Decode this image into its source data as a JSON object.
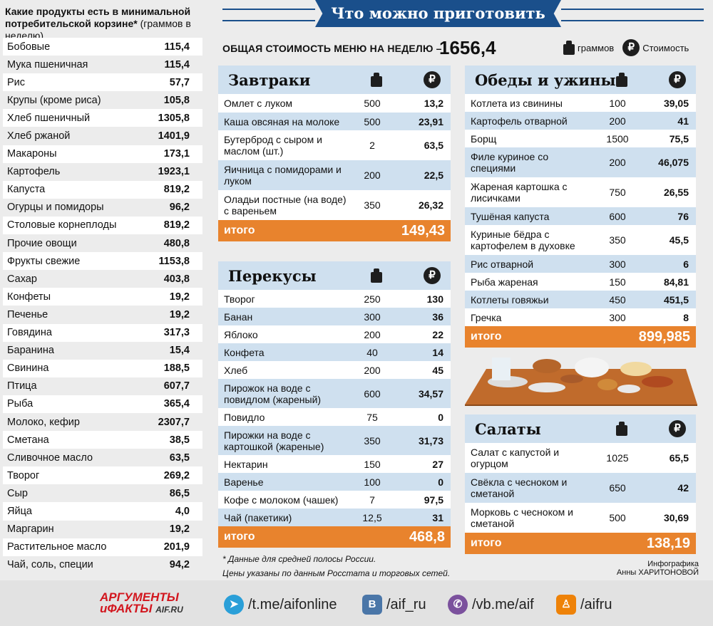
{
  "basket": {
    "title_bold": "Какие продукты есть в минимальной потребительской корзине*",
    "title_rest": " (граммов в неделю)",
    "items": [
      {
        "name": "Бобовые",
        "value": "115,4"
      },
      {
        "name": "Мука пшеничная",
        "value": "115,4"
      },
      {
        "name": "Рис",
        "value": "57,7"
      },
      {
        "name": "Крупы (кроме риса)",
        "value": "105,8"
      },
      {
        "name": "Хлеб пшеничный",
        "value": "1305,8"
      },
      {
        "name": "Хлеб ржаной",
        "value": "1401,9"
      },
      {
        "name": "Макароны",
        "value": "173,1"
      },
      {
        "name": "Картофель",
        "value": "1923,1"
      },
      {
        "name": "Капуста",
        "value": "819,2"
      },
      {
        "name": "Огурцы и помидоры",
        "value": "96,2"
      },
      {
        "name": "Столовые корнеплоды",
        "value": "819,2"
      },
      {
        "name": "Прочие овощи",
        "value": "480,8"
      },
      {
        "name": "Фрукты свежие",
        "value": "1153,8"
      },
      {
        "name": "Сахар",
        "value": "403,8"
      },
      {
        "name": "Конфеты",
        "value": "19,2"
      },
      {
        "name": "Печенье",
        "value": "19,2"
      },
      {
        "name": "Говядина",
        "value": "317,3"
      },
      {
        "name": "Баранина",
        "value": "15,4"
      },
      {
        "name": "Свинина",
        "value": "188,5"
      },
      {
        "name": "Птица",
        "value": "607,7"
      },
      {
        "name": "Рыба",
        "value": "365,4"
      },
      {
        "name": "Молоко, кефир",
        "value": "2307,7"
      },
      {
        "name": "Сметана",
        "value": "38,5"
      },
      {
        "name": "Сливочное масло",
        "value": "63,5"
      },
      {
        "name": "Творог",
        "value": "269,2"
      },
      {
        "name": "Сыр",
        "value": "86,5"
      },
      {
        "name": "Яйца",
        "value": "4,0"
      },
      {
        "name": "Маргарин",
        "value": "19,2"
      },
      {
        "name": "Растительное масло",
        "value": "201,9"
      },
      {
        "name": "Чай, соль, специи",
        "value": "94,2"
      }
    ]
  },
  "banner": "Что можно приготовить",
  "total": {
    "label": "ОБЩАЯ СТОИМОСТЬ МЕНЮ НА НЕДЕЛЮ –",
    "value": "1656,4"
  },
  "legend": {
    "grams": "граммов",
    "cost": "Стоимость",
    "rub": "₽"
  },
  "total_label": "итого",
  "breakfast": {
    "title": "Завтраки",
    "rows": [
      {
        "name": "Омлет с луком",
        "g": "500",
        "c": "13,2"
      },
      {
        "name": "Каша овсяная на молоке",
        "g": "500",
        "c": "23,91"
      },
      {
        "name": "Бутерброд с сыром и маслом (шт.)",
        "g": "2",
        "c": "63,5"
      },
      {
        "name": "Яичница с помидорами и луком",
        "g": "200",
        "c": "22,5"
      },
      {
        "name": "Оладьи постные (на воде) с вареньем",
        "g": "350",
        "c": "26,32"
      }
    ],
    "total": "149,43"
  },
  "snacks": {
    "title": "Перекусы",
    "rows": [
      {
        "name": "Творог",
        "g": "250",
        "c": "130"
      },
      {
        "name": "Банан",
        "g": "300",
        "c": "36"
      },
      {
        "name": "Яблоко",
        "g": "200",
        "c": "22"
      },
      {
        "name": "Конфета",
        "g": "40",
        "c": "14"
      },
      {
        "name": "Хлеб",
        "g": "200",
        "c": "45"
      },
      {
        "name": "Пирожок на воде с повидлом (жареный)",
        "g": "600",
        "c": "34,57"
      },
      {
        "name": "Повидло",
        "g": "75",
        "c": "0"
      },
      {
        "name": "Пирожки на воде с картошкой (жареные)",
        "g": "350",
        "c": "31,73"
      },
      {
        "name": "Нектарин",
        "g": "150",
        "c": "27"
      },
      {
        "name": "Варенье",
        "g": "100",
        "c": "0"
      },
      {
        "name": "Кофе с молоком (чашек)",
        "g": "7",
        "c": "97,5"
      },
      {
        "name": "Чай (пакетики)",
        "g": "12,5",
        "c": "31"
      }
    ],
    "total": "468,8"
  },
  "dinners": {
    "title": "Обеды и ужины",
    "rows": [
      {
        "name": "Котлета из свинины",
        "g": "100",
        "c": "39,05"
      },
      {
        "name": "Картофель отварной",
        "g": "200",
        "c": "41"
      },
      {
        "name": "Борщ",
        "g": "1500",
        "c": "75,5"
      },
      {
        "name": "Филе куриное со специями",
        "g": "200",
        "c": "46,075"
      },
      {
        "name": "Жареная картошка с лисичками",
        "g": "750",
        "c": "26,55"
      },
      {
        "name": "Тушёная капуста",
        "g": "600",
        "c": "76"
      },
      {
        "name": "Куриные бёдра с картофелем в духовке",
        "g": "350",
        "c": "45,5"
      },
      {
        "name": "Рис отварной",
        "g": "300",
        "c": "6"
      },
      {
        "name": "Рыба жареная",
        "g": "150",
        "c": "84,81"
      },
      {
        "name": "Котлеты говяжьи",
        "g": "450",
        "c": "451,5"
      },
      {
        "name": "Гречка",
        "g": "300",
        "c": "8"
      }
    ],
    "total": "899,985"
  },
  "salads": {
    "title": "Салаты",
    "rows": [
      {
        "name": "Салат с капустой и огурцом",
        "g": "1025",
        "c": "65,5"
      },
      {
        "name": "Свёкла с чесноком и сметаной",
        "g": "650",
        "c": "42"
      },
      {
        "name": "Морковь с чесноком и сметаной",
        "g": "500",
        "c": "30,69"
      }
    ],
    "total": "138,19"
  },
  "footnote": {
    "line1": "* Данные для средней полосы России.",
    "line2": "Цены указаны по данным Росстата и торговых сетей."
  },
  "credit": {
    "line1": "Инфографика",
    "line2": "Анны ХАРИТОНОВОЙ"
  },
  "footer": {
    "logo1": "АРГУМЕНТЫ",
    "logo2": "иФАКТЫ",
    "logo_site": "AIF.RU",
    "telegram": "/t.me/aifonline",
    "vk": "/aif_ru",
    "viber": "/vb.me/aif",
    "ok": "/aifru"
  },
  "colors": {
    "navy": "#1a4f8b",
    "stripe": "#cfe0ef",
    "total": "#e8832d"
  }
}
